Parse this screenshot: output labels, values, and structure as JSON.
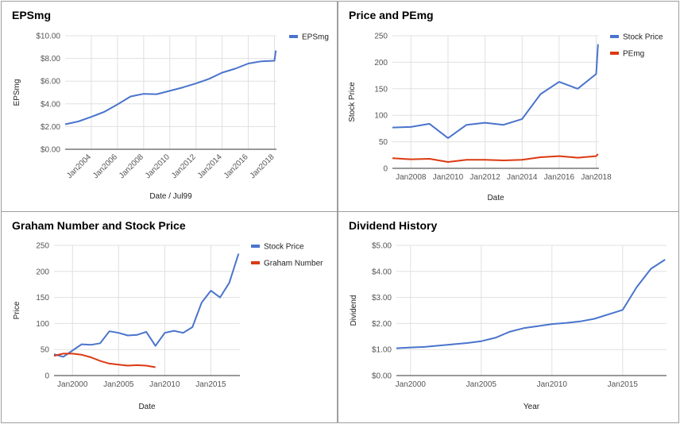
{
  "chart_data": [
    {
      "type": "line",
      "title": "EPSmg",
      "xlabel": "Date / Jul99",
      "ylabel": "EPSmg",
      "ylim": [
        0,
        10
      ],
      "yticks": [
        "$0.00",
        "$2.00",
        "$4.00",
        "$6.00",
        "$8.00",
        "$10.00"
      ],
      "xticks": [
        "Jan2004",
        "Jan2006",
        "Jan2008",
        "Jan2010",
        "Jan2012",
        "Jan2014",
        "Jan2016",
        "Jan2018"
      ],
      "legend_position": "right",
      "grid": true,
      "series": [
        {
          "name": "EPSmg",
          "color": "#4a74cc",
          "x": [
            2002,
            2003,
            2004,
            2005,
            2006,
            2007,
            2008,
            2009,
            2010,
            2011,
            2012,
            2013,
            2014,
            2015,
            2016,
            2017,
            2018,
            2018.1
          ],
          "y": [
            2.2,
            2.45,
            2.85,
            3.3,
            3.95,
            4.65,
            4.88,
            4.85,
            5.15,
            5.45,
            5.8,
            6.2,
            6.75,
            7.1,
            7.55,
            7.75,
            7.8,
            8.7
          ]
        }
      ]
    },
    {
      "type": "line",
      "title": "Price and PEmg",
      "xlabel": "Date",
      "ylabel": "Stock Price",
      "ylim": [
        0,
        250
      ],
      "yticks": [
        "0",
        "50",
        "100",
        "150",
        "200",
        "250"
      ],
      "xticks": [
        "Jan2008",
        "Jan2010",
        "Jan2012",
        "Jan2014",
        "Jan2016",
        "Jan2018"
      ],
      "legend_position": "right",
      "grid": true,
      "series": [
        {
          "name": "Stock Price",
          "color": "#4a74cc",
          "x": [
            2007,
            2008,
            2009,
            2010,
            2011,
            2012,
            2013,
            2014,
            2015,
            2016,
            2017,
            2018,
            2018.1
          ],
          "y": [
            77,
            78,
            84,
            57,
            82,
            86,
            82,
            93,
            140,
            163,
            150,
            178,
            234
          ]
        },
        {
          "name": "PEmg",
          "color": "#dc3912",
          "x": [
            2007,
            2008,
            2009,
            2010,
            2011,
            2012,
            2013,
            2014,
            2015,
            2016,
            2017,
            2018,
            2018.1
          ],
          "y": [
            19,
            17,
            18,
            12,
            16,
            16,
            15,
            16,
            21,
            23,
            20,
            23,
            27
          ]
        }
      ]
    },
    {
      "type": "line",
      "title": "Graham Number and Stock Price",
      "xlabel": "Date",
      "ylabel": "Price",
      "ylim": [
        0,
        250
      ],
      "yticks": [
        "0",
        "50",
        "100",
        "150",
        "200",
        "250"
      ],
      "xticks": [
        "Jan2000",
        "Jan2005",
        "Jan2010",
        "Jan2015"
      ],
      "legend_position": "right",
      "grid": true,
      "series": [
        {
          "name": "Stock Price",
          "color": "#4a74cc",
          "x": [
            1998,
            1999,
            2000,
            2001,
            2002,
            2003,
            2004,
            2005,
            2006,
            2007,
            2008,
            2009,
            2010,
            2011,
            2012,
            2013,
            2014,
            2015,
            2016,
            2017,
            2018
          ],
          "y": [
            41,
            36,
            48,
            60,
            59,
            62,
            85,
            82,
            77,
            78,
            84,
            57,
            82,
            86,
            82,
            93,
            140,
            163,
            150,
            178,
            234
          ]
        },
        {
          "name": "Graham Number",
          "color": "#dc3912",
          "x": [
            1998,
            1999,
            2000,
            2001,
            2002,
            2003,
            2004,
            2005,
            2006,
            2007,
            2008,
            2009
          ],
          "y": [
            38,
            42,
            42,
            40,
            35,
            28,
            23,
            21,
            19,
            20,
            19,
            16
          ]
        }
      ]
    },
    {
      "type": "line",
      "title": "Dividend History",
      "xlabel": "Year",
      "ylabel": "Dividend",
      "ylim": [
        0,
        5
      ],
      "yticks": [
        "$0.00",
        "$1.00",
        "$2.00",
        "$3.00",
        "$4.00",
        "$5.00"
      ],
      "xticks": [
        "Jan2000",
        "Jan2005",
        "Jan2010",
        "Jan2015"
      ],
      "grid": true,
      "series": [
        {
          "color": "#4a74cc",
          "x": [
            1999,
            2000,
            2001,
            2002,
            2003,
            2004,
            2005,
            2006,
            2007,
            2008,
            2009,
            2010,
            2011,
            2012,
            2013,
            2014,
            2015,
            2016,
            2017,
            2018
          ],
          "y": [
            1.05,
            1.08,
            1.1,
            1.15,
            1.2,
            1.25,
            1.32,
            1.45,
            1.68,
            1.82,
            1.9,
            1.98,
            2.02,
            2.08,
            2.18,
            2.35,
            2.52,
            3.4,
            4.1,
            4.45
          ]
        }
      ]
    }
  ]
}
